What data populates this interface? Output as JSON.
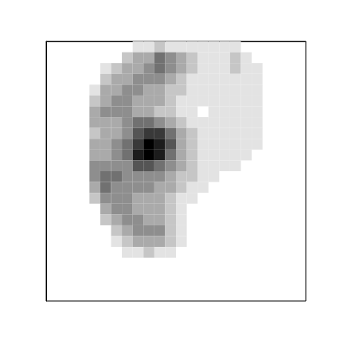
{
  "chart_data": {
    "type": "heatmap",
    "xlim": [
      0,
      24
    ],
    "ylim": [
      0,
      24
    ],
    "xticks": [],
    "yticks": [],
    "tick_labels": false,
    "grid": false,
    "zlim": [
      0,
      9
    ],
    "cells": [
      [
        0,
        0,
        0,
        0,
        0,
        0,
        0,
        0,
        1,
        1,
        2,
        1,
        1,
        1,
        1,
        1,
        1,
        1,
        0,
        0,
        0,
        0,
        0,
        0
      ],
      [
        0,
        0,
        0,
        0,
        0,
        0,
        0,
        2,
        3,
        3,
        5,
        4,
        3,
        2,
        1,
        1,
        1,
        2,
        1,
        0,
        0,
        0,
        0,
        0
      ],
      [
        0,
        0,
        0,
        0,
        0,
        1,
        2,
        3,
        3,
        4,
        5,
        4,
        3,
        2,
        1,
        1,
        1,
        2,
        1,
        1,
        0,
        0,
        0,
        0
      ],
      [
        0,
        0,
        0,
        0,
        0,
        2,
        3,
        3,
        4,
        4,
        4,
        3,
        2,
        1,
        1,
        1,
        1,
        1,
        1,
        1,
        0,
        0,
        0,
        0
      ],
      [
        0,
        0,
        0,
        0,
        1,
        3,
        3,
        4,
        4,
        3,
        3,
        2,
        2,
        1,
        1,
        1,
        1,
        1,
        1,
        1,
        0,
        0,
        0,
        0
      ],
      [
        0,
        0,
        0,
        0,
        2,
        3,
        4,
        4,
        3,
        3,
        3,
        2,
        1,
        1,
        1,
        1,
        1,
        1,
        1,
        1,
        0,
        0,
        0,
        0
      ],
      [
        0,
        0,
        0,
        0,
        3,
        4,
        4,
        4,
        3,
        3,
        2,
        2,
        1,
        1,
        0,
        1,
        1,
        1,
        1,
        1,
        0,
        0,
        0,
        0
      ],
      [
        0,
        0,
        0,
        0,
        3,
        3,
        3,
        4,
        5,
        5,
        4,
        3,
        2,
        1,
        1,
        1,
        1,
        1,
        1,
        1,
        0,
        0,
        0,
        0
      ],
      [
        0,
        0,
        0,
        0,
        2,
        3,
        3,
        4,
        6,
        7,
        7,
        5,
        3,
        2,
        1,
        1,
        1,
        1,
        1,
        1,
        0,
        0,
        0,
        0
      ],
      [
        0,
        0,
        0,
        0,
        3,
        3,
        4,
        5,
        7,
        9,
        8,
        6,
        3,
        2,
        1,
        1,
        1,
        1,
        1,
        1,
        0,
        0,
        0,
        0
      ],
      [
        0,
        0,
        0,
        0,
        3,
        3,
        4,
        5,
        8,
        9,
        8,
        5,
        3,
        2,
        1,
        1,
        1,
        1,
        1,
        0,
        0,
        0,
        0,
        0
      ],
      [
        0,
        0,
        0,
        0,
        4,
        4,
        4,
        4,
        6,
        6,
        5,
        4,
        3,
        2,
        1,
        1,
        1,
        1,
        0,
        0,
        0,
        0,
        0,
        0
      ],
      [
        0,
        0,
        0,
        0,
        4,
        5,
        5,
        4,
        4,
        4,
        4,
        3,
        2,
        2,
        1,
        1,
        0,
        0,
        0,
        0,
        0,
        0,
        0,
        0
      ],
      [
        0,
        0,
        0,
        0,
        3,
        5,
        4,
        4,
        4,
        4,
        3,
        3,
        2,
        1,
        1,
        0,
        0,
        0,
        0,
        0,
        0,
        0,
        0,
        0
      ],
      [
        0,
        0,
        0,
        0,
        2,
        4,
        4,
        4,
        3,
        3,
        3,
        2,
        1,
        1,
        0,
        0,
        0,
        0,
        0,
        0,
        0,
        0,
        0,
        0
      ],
      [
        0,
        0,
        0,
        0,
        0,
        3,
        4,
        4,
        3,
        3,
        3,
        2,
        1,
        0,
        0,
        0,
        0,
        0,
        0,
        0,
        0,
        0,
        0,
        0
      ],
      [
        0,
        0,
        0,
        0,
        0,
        2,
        3,
        4,
        4,
        3,
        3,
        2,
        1,
        0,
        0,
        0,
        0,
        0,
        0,
        0,
        0,
        0,
        0,
        0
      ],
      [
        0,
        0,
        0,
        0,
        0,
        0,
        2,
        3,
        4,
        4,
        4,
        2,
        1,
        0,
        0,
        0,
        0,
        0,
        0,
        0,
        0,
        0,
        0,
        0
      ],
      [
        0,
        0,
        0,
        0,
        0,
        0,
        1,
        2,
        3,
        3,
        3,
        2,
        1,
        0,
        0,
        0,
        0,
        0,
        0,
        0,
        0,
        0,
        0,
        0
      ],
      [
        0,
        0,
        0,
        0,
        0,
        0,
        0,
        1,
        1,
        2,
        1,
        1,
        0,
        0,
        0,
        0,
        0,
        0,
        0,
        0,
        0,
        0,
        0,
        0
      ],
      [
        0,
        0,
        0,
        0,
        0,
        0,
        0,
        0,
        0,
        0,
        0,
        0,
        0,
        0,
        0,
        0,
        0,
        0,
        0,
        0,
        0,
        0,
        0,
        0
      ],
      [
        0,
        0,
        0,
        0,
        0,
        0,
        0,
        0,
        0,
        0,
        0,
        0,
        0,
        0,
        0,
        0,
        0,
        0,
        0,
        0,
        0,
        0,
        0,
        0
      ],
      [
        0,
        0,
        0,
        0,
        0,
        0,
        0,
        0,
        0,
        0,
        0,
        0,
        0,
        0,
        0,
        0,
        0,
        0,
        0,
        0,
        0,
        0,
        0,
        0
      ],
      [
        0,
        0,
        0,
        0,
        0,
        0,
        0,
        0,
        0,
        0,
        0,
        0,
        0,
        0,
        0,
        0,
        0,
        0,
        0,
        0,
        0,
        0,
        0,
        0
      ]
    ]
  }
}
